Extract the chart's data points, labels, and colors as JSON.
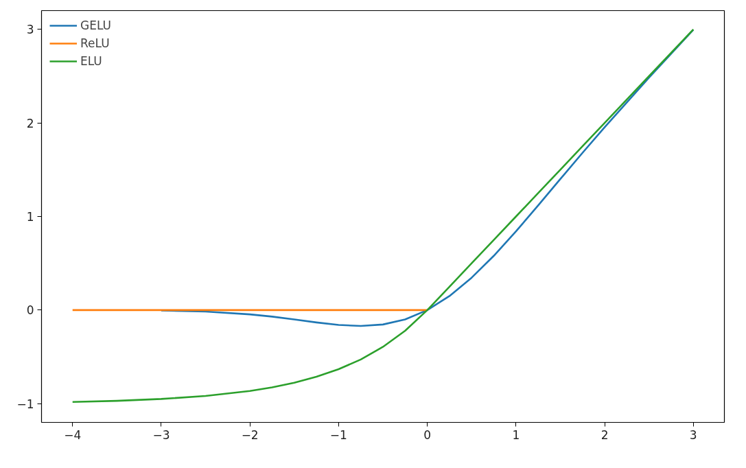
{
  "chart_data": {
    "type": "line",
    "x": [
      -4,
      -3.5,
      -3,
      -2.5,
      -2,
      -1.75,
      -1.5,
      -1.25,
      -1,
      -0.75,
      -0.5,
      -0.25,
      0,
      0.25,
      0.5,
      0.75,
      1,
      1.25,
      1.5,
      1.75,
      2,
      2.5,
      3
    ],
    "series": [
      {
        "name": "GELU",
        "color": "#1f77b4",
        "values": [
          null,
          null,
          -0.004,
          -0.016,
          -0.046,
          -0.07,
          -0.1,
          -0.132,
          -0.159,
          -0.17,
          -0.154,
          -0.1,
          0,
          0.15,
          0.346,
          0.58,
          0.841,
          1.118,
          1.4,
          1.68,
          1.954,
          2.484,
          2.996
        ]
      },
      {
        "name": "ReLU",
        "color": "#ff7f0e",
        "values": [
          0,
          0,
          0,
          0,
          0,
          0,
          0,
          0,
          0,
          0,
          0,
          0,
          0,
          null,
          null,
          null,
          null,
          null,
          null,
          null,
          null,
          null,
          null
        ]
      },
      {
        "name": "ELU",
        "color": "#2ca02c",
        "values": [
          -0.982,
          -0.97,
          -0.95,
          -0.918,
          -0.865,
          -0.826,
          -0.777,
          -0.713,
          -0.632,
          -0.528,
          -0.393,
          -0.221,
          0,
          0.25,
          0.5,
          0.75,
          1,
          1.25,
          1.5,
          1.75,
          2,
          2.5,
          3
        ]
      }
    ],
    "xlim": [
      -4.35,
      3.35
    ],
    "ylim": [
      -1.2,
      3.2
    ],
    "xticks": [
      {
        "value": -4,
        "label": "−4"
      },
      {
        "value": -3,
        "label": "−3"
      },
      {
        "value": -2,
        "label": "−2"
      },
      {
        "value": -1,
        "label": "−1"
      },
      0,
      1,
      2,
      3
    ],
    "yticks": [
      {
        "value": -1,
        "label": "−1"
      },
      0,
      1,
      2,
      3
    ],
    "grid": false,
    "legend": "top left",
    "marker": "none",
    "line_style": "solid"
  }
}
